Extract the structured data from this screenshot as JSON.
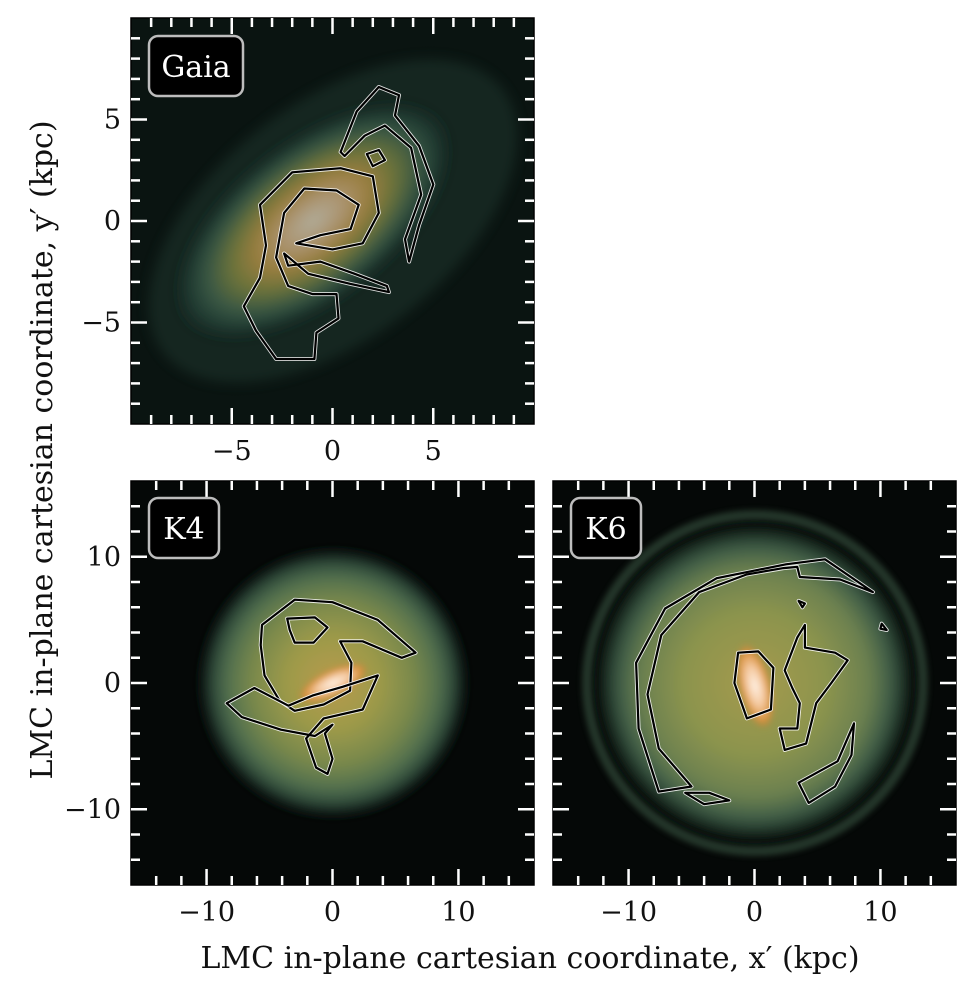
{
  "figure": {
    "xlabel": "LMC in-plane cartesian coordinate, x′ (kpc)",
    "ylabel": "LMC in-plane cartesian coordinate, y′ (kpc)"
  },
  "chart_data": [
    {
      "type": "heatmap",
      "panel": "Gaia",
      "title": "Gaia",
      "xlim": [
        -10,
        10
      ],
      "ylim": [
        -10,
        10
      ],
      "xticks": [
        -5,
        0,
        5
      ],
      "xtick_labels": [
        "−5",
        "0",
        "5"
      ],
      "yticks": [
        -5,
        0,
        5
      ],
      "ytick_labels": [
        "−5",
        "0",
        "5"
      ],
      "description_values": {
        "tilt_deg": 38,
        "sigma_major": 7.2,
        "sigma_minor": 3.6,
        "peak_x": -1,
        "peak_y": 0
      },
      "contours": [
        [
          [
            -4.4,
            -4.2
          ],
          [
            -3.6,
            -2.8
          ],
          [
            -3.3,
            -1.2
          ],
          [
            -3.6,
            0.8
          ],
          [
            -2,
            2.4
          ],
          [
            0.4,
            2.6
          ],
          [
            2,
            2.2
          ],
          [
            2.3,
            0.4
          ],
          [
            1.5,
            -1.1
          ],
          [
            0,
            -1.4
          ],
          [
            -1.8,
            -1.1
          ],
          [
            -0.6,
            -0.7
          ],
          [
            0.9,
            -0.4
          ],
          [
            1.3,
            0.8
          ],
          [
            0.2,
            1.5
          ],
          [
            -1.4,
            1.6
          ],
          [
            -2.4,
            0.4
          ],
          [
            -2.8,
            -1.8
          ],
          [
            -2.2,
            -3.2
          ],
          [
            -1,
            -3.6
          ],
          [
            0.2,
            -3.6
          ],
          [
            0.3,
            -4.8
          ],
          [
            -0.8,
            -5.5
          ],
          [
            -0.9,
            -6.8
          ],
          [
            -2.8,
            -6.8
          ],
          [
            -3.8,
            -5.4
          ]
        ],
        [
          [
            -2.4,
            -1.6
          ],
          [
            -1.2,
            -2.6
          ],
          [
            0.9,
            -3.1
          ],
          [
            2.8,
            -3.5
          ],
          [
            2.7,
            -3.2
          ],
          [
            1.1,
            -2.6
          ],
          [
            -0.6,
            -2
          ],
          [
            -2.2,
            -2.2
          ]
        ],
        [
          [
            0.4,
            3.4
          ],
          [
            1.2,
            5.4
          ],
          [
            2.3,
            6.6
          ],
          [
            3.3,
            6.2
          ],
          [
            3.1,
            5.2
          ],
          [
            4.3,
            3.7
          ],
          [
            5,
            1.8
          ],
          [
            4.3,
            -0.2
          ],
          [
            3.8,
            -2
          ],
          [
            3.6,
            -0.9
          ],
          [
            4.4,
            1.3
          ],
          [
            3.9,
            3.6
          ],
          [
            2.6,
            4.7
          ],
          [
            1.6,
            4.2
          ],
          [
            0.6,
            3.2
          ]
        ],
        [
          [
            1.7,
            3.3
          ],
          [
            2.3,
            3.5
          ],
          [
            2.6,
            3
          ],
          [
            2,
            2.7
          ]
        ]
      ]
    },
    {
      "type": "heatmap",
      "panel": "K4",
      "title": "K4",
      "xlim": [
        -16,
        16
      ],
      "ylim": [
        -16,
        16
      ],
      "xticks": [
        -10,
        0,
        10
      ],
      "xtick_labels": [
        "−10",
        "0",
        "10"
      ],
      "yticks": [
        -10,
        0,
        10
      ],
      "ytick_labels": [
        "−10",
        "0",
        "10"
      ],
      "description_values": {
        "disk_radius": 10.5,
        "bar_length": 5.5,
        "bar_tilt_deg": 25
      },
      "contours": [
        [
          [
            -5.6,
            4.6
          ],
          [
            -3,
            6.6
          ],
          [
            0,
            6.4
          ],
          [
            3.6,
            5
          ],
          [
            6.6,
            2.4
          ],
          [
            5.5,
            2
          ],
          [
            2.4,
            3.3
          ],
          [
            0.6,
            3.3
          ],
          [
            1.5,
            1.6
          ],
          [
            1.4,
            -0.6
          ],
          [
            -0.7,
            -1.7
          ],
          [
            -3,
            -2.2
          ],
          [
            -4.2,
            -1.4
          ],
          [
            -5.4,
            0.6
          ],
          [
            -5.7,
            3
          ]
        ],
        [
          [
            -3.6,
            5.1
          ],
          [
            -1.4,
            5.2
          ],
          [
            -0.4,
            4.4
          ],
          [
            -1.5,
            3.2
          ],
          [
            -3,
            3.2
          ],
          [
            -3.4,
            4.2
          ]
        ],
        [
          [
            -8.4,
            -1.6
          ],
          [
            -6.2,
            -0.4
          ],
          [
            -3.5,
            -1.8
          ],
          [
            -1.6,
            -1
          ],
          [
            0.8,
            -0.3
          ],
          [
            3.6,
            0.6
          ],
          [
            2.4,
            -2.1
          ],
          [
            -0.7,
            -2.8
          ],
          [
            -2.1,
            -4.4
          ],
          [
            -1.3,
            -6.7
          ],
          [
            -0.4,
            -7.2
          ],
          [
            0,
            -6
          ],
          [
            -0.6,
            -4
          ],
          [
            0,
            -3.3
          ],
          [
            -1.4,
            -4.2
          ],
          [
            -4.1,
            -3.7
          ],
          [
            -7.2,
            -2.7
          ]
        ]
      ]
    },
    {
      "type": "heatmap",
      "panel": "K6",
      "title": "K6",
      "xlim": [
        -16,
        16
      ],
      "ylim": [
        -16,
        16
      ],
      "xticks": [
        -10,
        0,
        10
      ],
      "xtick_labels": [
        "−10",
        "0",
        "10"
      ],
      "yticks": [
        -10,
        0,
        10
      ],
      "ytick_labels": [
        "−10",
        "0",
        "10"
      ],
      "description_values": {
        "disk_radius": 12,
        "bar_length": 7,
        "bar_tilt_deg": 76
      },
      "contours": [
        [
          [
            -9.4,
            1.6
          ],
          [
            -7.1,
            5.9
          ],
          [
            -3,
            8.3
          ],
          [
            2.5,
            9.4
          ],
          [
            5.6,
            9.8
          ],
          [
            9.4,
            7.2
          ],
          [
            6.8,
            8.2
          ],
          [
            3.6,
            8.4
          ],
          [
            3.4,
            9.2
          ],
          [
            2.3,
            9.1
          ],
          [
            -0.6,
            8.6
          ],
          [
            -4.4,
            7.2
          ],
          [
            -7.4,
            3.8
          ],
          [
            -8.5,
            -0.9
          ],
          [
            -7.6,
            -5.2
          ],
          [
            -5,
            -8.2
          ],
          [
            -7.6,
            -8.6
          ],
          [
            -9.2,
            -3.6
          ]
        ],
        [
          [
            -1.3,
            2.4
          ],
          [
            -1.6,
            0
          ],
          [
            -0.6,
            -2.8
          ],
          [
            1.3,
            -2.1
          ],
          [
            1.5,
            1.2
          ],
          [
            0.3,
            2.5
          ]
        ],
        [
          [
            2.4,
            1
          ],
          [
            3.4,
            3.6
          ],
          [
            4,
            4.6
          ],
          [
            4,
            2.8
          ],
          [
            6.4,
            2.4
          ],
          [
            7.4,
            1.8
          ],
          [
            6.1,
            0
          ],
          [
            4.9,
            -1.6
          ],
          [
            4.1,
            -4.8
          ],
          [
            2.4,
            -5.3
          ],
          [
            2,
            -3.6
          ],
          [
            3.4,
            -3.6
          ],
          [
            3.6,
            -1.6
          ],
          [
            3,
            -0.4
          ]
        ],
        [
          [
            4.3,
            -9.5
          ],
          [
            6.4,
            -8.2
          ],
          [
            7.7,
            -5.7
          ],
          [
            7.9,
            -3.2
          ],
          [
            6.6,
            -6.2
          ],
          [
            3.5,
            -7.9
          ]
        ],
        [
          [
            -5.5,
            -8.7
          ],
          [
            -4,
            -9.6
          ],
          [
            -2,
            -9.3
          ],
          [
            -3.6,
            -8.7
          ]
        ],
        [
          [
            10.1,
            4.7
          ],
          [
            10.5,
            4.2
          ],
          [
            10,
            4.3
          ]
        ],
        [
          [
            3.5,
            6.5
          ],
          [
            3.8,
            6
          ],
          [
            4,
            6.3
          ]
        ]
      ]
    }
  ]
}
